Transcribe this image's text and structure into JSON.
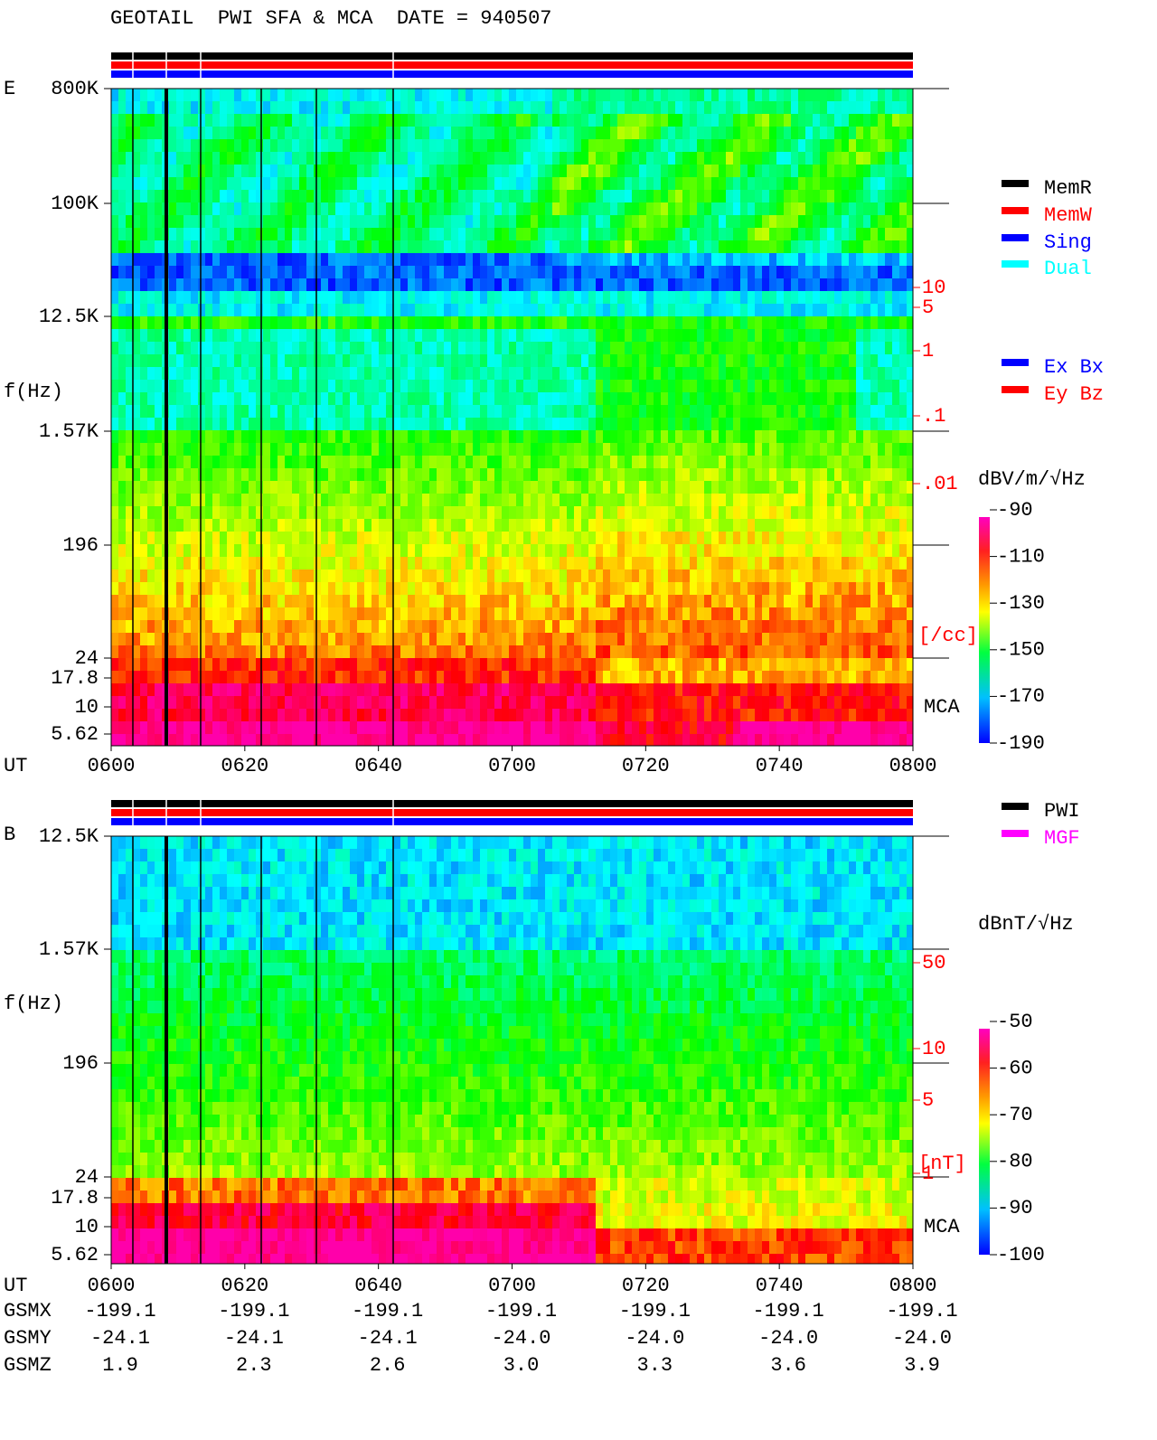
{
  "header": {
    "title": "GEOTAIL  PWI SFA & MCA  DATE = 940507"
  },
  "panels": [
    {
      "label": "E",
      "y_axis_label": "f(Hz)",
      "x_axis_label": "UT",
      "y_ticks": [
        "800K",
        "100K",
        "12.5K",
        "1.57K",
        "196",
        "24",
        "17.8",
        "10",
        "5.62"
      ],
      "x_ticks": [
        "0600",
        "0620",
        "0640",
        "0700",
        "0720",
        "0740",
        "0800"
      ],
      "right_scale": [
        "10",
        "5",
        "1",
        ".1",
        ".01"
      ],
      "right_unit": "[/cc]",
      "mca_label": "MCA",
      "legend": [
        {
          "text": "MemR",
          "color": "#000000"
        },
        {
          "text": "MemW",
          "color": "#ff0000"
        },
        {
          "text": "Sing",
          "color": "#0000ff"
        },
        {
          "text": "Dual",
          "color": "#00ffff"
        }
      ],
      "legend2": [
        {
          "text": "Ex Bx",
          "color": "#0000ff"
        },
        {
          "text": "Ey Bz",
          "color": "#ff0000"
        }
      ],
      "colorbar_unit": "dBV/m/√Hz",
      "colorbar_ticks": [
        "-90",
        "-110",
        "-130",
        "-150",
        "-170",
        "-190"
      ]
    },
    {
      "label": "B",
      "y_axis_label": "f(Hz)",
      "x_axis_label": "UT",
      "y_ticks": [
        "12.5K",
        "1.57K",
        "196",
        "24",
        "17.8",
        "10",
        "5.62"
      ],
      "x_ticks": [
        "0600",
        "0620",
        "0640",
        "0700",
        "0720",
        "0740",
        "0800"
      ],
      "right_scale": [
        "50",
        "10",
        "5",
        "1"
      ],
      "right_unit": "[nT]",
      "mca_label": "MCA",
      "legend": [
        {
          "text": "PWI",
          "color": "#000000"
        },
        {
          "text": "MGF",
          "color": "#ff00ff"
        }
      ],
      "colorbar_unit": "dBnT/√Hz",
      "colorbar_ticks": [
        "-50",
        "-60",
        "-70",
        "-80",
        "-90",
        "-100"
      ]
    }
  ],
  "orbit": {
    "rows": [
      {
        "label": "GSMX",
        "values": [
          "-199.1",
          "-199.1",
          "-199.1",
          "-199.1",
          "-199.1",
          "-199.1",
          "-199.1"
        ]
      },
      {
        "label": "GSMY",
        "values": [
          "-24.1",
          "-24.1",
          "-24.1",
          "-24.0",
          "-24.0",
          "-24.0",
          "-24.0"
        ]
      },
      {
        "label": "GSMZ",
        "values": [
          "1.9",
          "2.3",
          "2.6",
          "3.0",
          "3.3",
          "3.6",
          "3.9"
        ]
      }
    ]
  }
}
